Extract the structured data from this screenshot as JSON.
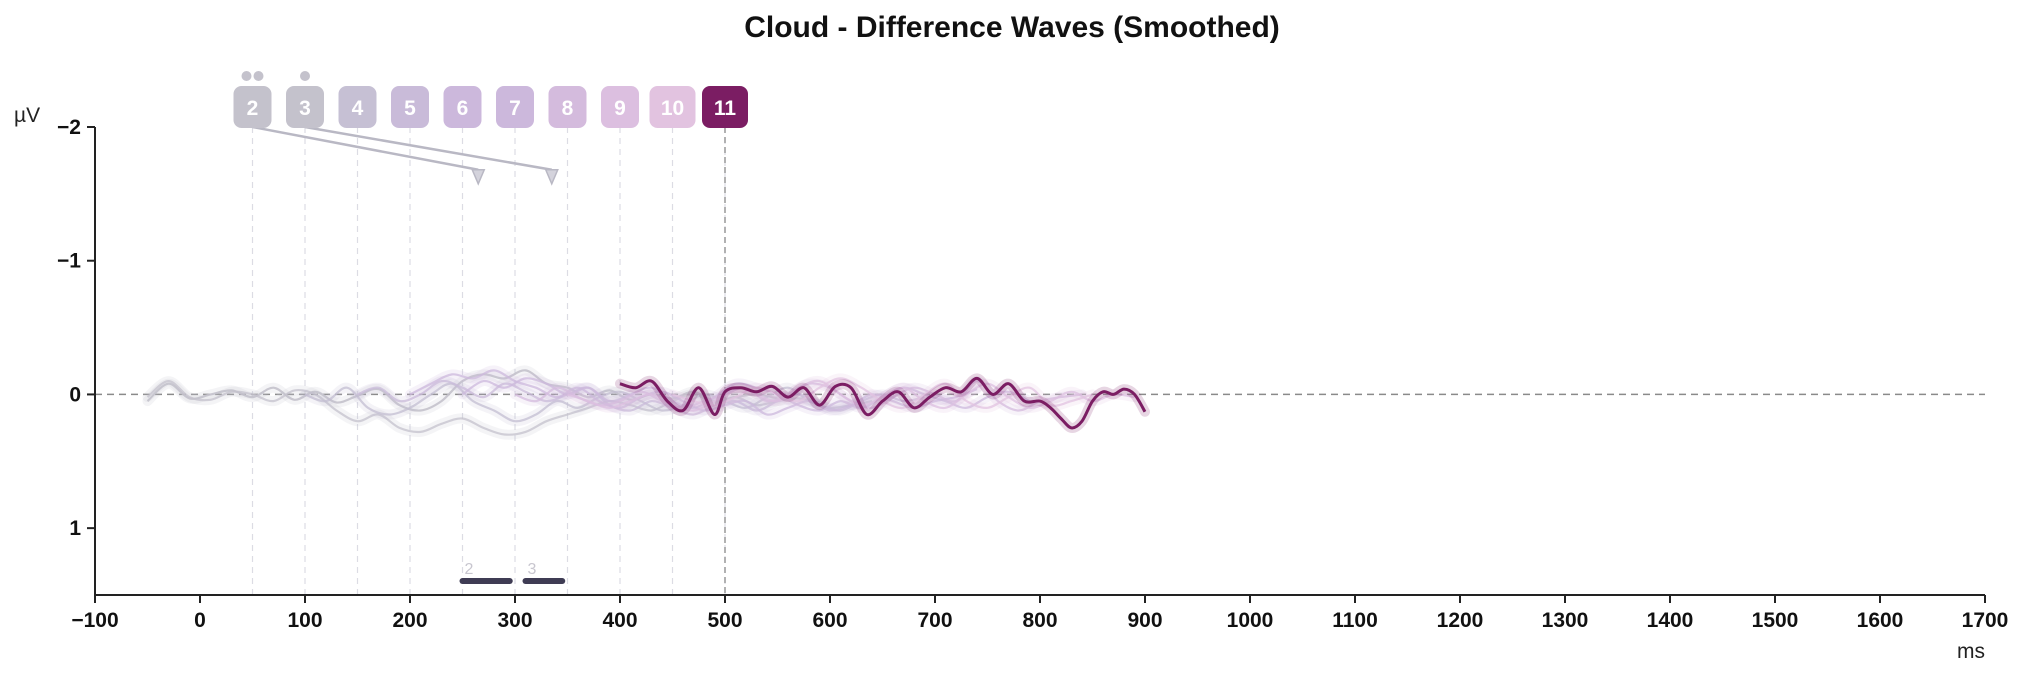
{
  "chart_data": {
    "type": "line",
    "title": "Cloud - Difference Waves (Smoothed)",
    "xlabel": "ms",
    "ylabel": "µV",
    "xlim": [
      -100,
      1700
    ],
    "ylim": [
      -2,
      1.5
    ],
    "y_inverted": true,
    "x_ticks": [
      -100,
      0,
      100,
      200,
      300,
      400,
      500,
      600,
      700,
      800,
      900,
      1000,
      1100,
      1200,
      1300,
      1400,
      1500,
      1600,
      1700
    ],
    "x_tick_labels": [
      "−100",
      "0",
      "100",
      "200",
      "300",
      "400",
      "500",
      "600",
      "700",
      "800",
      "900",
      "1000",
      "1100",
      "1200",
      "1300",
      "1400",
      "1500",
      "1600",
      "1700"
    ],
    "y_ticks": [
      -2,
      -1,
      0,
      1
    ],
    "y_tick_labels": [
      "−2",
      "−1",
      "0",
      "1"
    ],
    "zero_line": true,
    "highlight_onset_ms": 500,
    "stimulus_onsets_ms": [
      50,
      100,
      150,
      200,
      250,
      300,
      350,
      400,
      450,
      500
    ],
    "stimulus_badges": [
      {
        "label": "2",
        "onset": 50,
        "color": "#c4c2cc",
        "dots": 2
      },
      {
        "label": "3",
        "onset": 100,
        "color": "#c4c2cc",
        "dots": 1
      },
      {
        "label": "4",
        "onset": 150,
        "color": "#c6c0d4",
        "dots": 0
      },
      {
        "label": "5",
        "onset": 200,
        "color": "#c9bbd9",
        "dots": 0
      },
      {
        "label": "6",
        "onset": 250,
        "color": "#ccb8dc",
        "dots": 0
      },
      {
        "label": "7",
        "onset": 300,
        "color": "#ccb8dc",
        "dots": 0
      },
      {
        "label": "8",
        "onset": 350,
        "color": "#d4bbdd",
        "dots": 0
      },
      {
        "label": "9",
        "onset": 400,
        "color": "#dcbfe0",
        "dots": 0
      },
      {
        "label": "10",
        "onset": 450,
        "color": "#e2c3e0",
        "dots": 0
      },
      {
        "label": "11",
        "onset": 500,
        "color": "#7b1d63",
        "dots": 0
      }
    ],
    "arrows": [
      {
        "from_ms": 50,
        "to_ms": 265,
        "to_uv": -1.68
      },
      {
        "from_ms": 100,
        "to_ms": 335,
        "to_uv": -1.68
      }
    ],
    "significance_bars": [
      {
        "label": "2",
        "start_ms": 250,
        "end_ms": 295
      },
      {
        "label": "3",
        "start_ms": 310,
        "end_ms": 345
      }
    ],
    "series": [
      {
        "color": "#c4c2cc",
        "opacity": 0.9,
        "x": [
          -50,
          -30,
          -10,
          10,
          30,
          50,
          70,
          90,
          110,
          130,
          150,
          170,
          190,
          210,
          230,
          250,
          270,
          290,
          310,
          330,
          350,
          370,
          390,
          410,
          430,
          450,
          470,
          490,
          510,
          530,
          550
        ],
        "y": [
          0.05,
          -0.08,
          0.03,
          0.0,
          -0.03,
          0.02,
          -0.05,
          0.04,
          -0.02,
          0.06,
          0.01,
          -0.04,
          0.08,
          0.12,
          0.05,
          -0.1,
          -0.15,
          -0.12,
          -0.18,
          -0.08,
          -0.05,
          0.02,
          -0.03,
          0.04,
          0.0,
          0.03,
          -0.02,
          0.05,
          0.02,
          0.0,
          0.03
        ]
      },
      {
        "color": "#c4c2cc",
        "opacity": 0.75,
        "x": [
          -50,
          -30,
          -10,
          10,
          30,
          50,
          70,
          90,
          110,
          130,
          150,
          170,
          190,
          210,
          230,
          250,
          270,
          290,
          310,
          330,
          350,
          370,
          390,
          410,
          430,
          450,
          470,
          490,
          510,
          530,
          550,
          570,
          590
        ],
        "y": [
          0.02,
          -0.1,
          0.02,
          0.04,
          -0.02,
          0.0,
          0.05,
          -0.03,
          0.0,
          0.12,
          0.2,
          0.15,
          0.25,
          0.28,
          0.22,
          0.18,
          0.25,
          0.3,
          0.28,
          0.2,
          0.15,
          0.1,
          0.05,
          0.08,
          0.12,
          0.05,
          0.0,
          0.06,
          0.02,
          0.08,
          0.05,
          0.03,
          0.06
        ]
      },
      {
        "color": "#c3bed2",
        "opacity": 0.75,
        "x": [
          100,
          120,
          140,
          160,
          180,
          200,
          220,
          240,
          260,
          280,
          300,
          320,
          340,
          360,
          380,
          400,
          420,
          440,
          460,
          480,
          500,
          520,
          540,
          560,
          580,
          600,
          620,
          640
        ],
        "y": [
          0.0,
          0.05,
          -0.05,
          0.1,
          0.15,
          0.1,
          0.0,
          -0.08,
          0.05,
          0.12,
          0.2,
          0.15,
          0.05,
          0.1,
          0.02,
          -0.02,
          0.05,
          0.12,
          0.08,
          0.0,
          0.05,
          0.1,
          0.02,
          -0.05,
          0.05,
          0.1,
          0.08,
          0.05
        ]
      },
      {
        "color": "#c9bbd9",
        "opacity": 0.75,
        "x": [
          150,
          170,
          190,
          210,
          230,
          250,
          270,
          290,
          310,
          330,
          350,
          370,
          390,
          410,
          430,
          450,
          470,
          490,
          510,
          530,
          550,
          570,
          590,
          610,
          630,
          650,
          670,
          690
        ],
        "y": [
          0.0,
          -0.05,
          0.05,
          0.0,
          -0.1,
          -0.05,
          0.02,
          -0.08,
          -0.02,
          0.05,
          0.0,
          -0.05,
          0.08,
          0.12,
          0.05,
          0.1,
          0.15,
          0.08,
          0.05,
          0.12,
          0.05,
          0.0,
          0.08,
          0.12,
          0.05,
          0.0,
          0.05,
          0.02
        ]
      },
      {
        "color": "#ccb8dc",
        "opacity": 0.75,
        "x": [
          200,
          220,
          240,
          260,
          280,
          300,
          320,
          340,
          360,
          380,
          400,
          420,
          440,
          460,
          480,
          500,
          520,
          540,
          560,
          580,
          600,
          620,
          640,
          660,
          680,
          700,
          720,
          740
        ],
        "y": [
          0.0,
          -0.08,
          -0.15,
          -0.12,
          -0.18,
          -0.1,
          -0.05,
          0.02,
          -0.05,
          0.05,
          0.1,
          0.02,
          -0.02,
          0.05,
          0.12,
          0.08,
          0.05,
          0.15,
          0.1,
          0.05,
          0.12,
          0.08,
          0.0,
          0.05,
          0.1,
          0.05,
          0.02,
          -0.04
        ]
      },
      {
        "color": "#ccb8dc",
        "opacity": 0.75,
        "x": [
          250,
          270,
          290,
          310,
          330,
          350,
          370,
          390,
          410,
          430,
          450,
          470,
          490,
          510,
          530,
          550,
          570,
          590,
          610,
          630,
          650,
          670,
          690,
          710,
          730,
          750,
          770,
          790
        ],
        "y": [
          0.0,
          -0.1,
          -0.05,
          -0.12,
          -0.08,
          0.0,
          -0.05,
          0.05,
          0.0,
          -0.05,
          0.05,
          0.1,
          0.02,
          -0.08,
          -0.05,
          0.0,
          0.08,
          0.12,
          0.05,
          0.1,
          0.02,
          -0.05,
          0.0,
          0.05,
          0.1,
          0.02,
          -0.02,
          0.05
        ]
      },
      {
        "color": "#d4bbdd",
        "opacity": 0.75,
        "x": [
          300,
          320,
          340,
          360,
          380,
          400,
          420,
          440,
          460,
          480,
          500,
          520,
          540,
          560,
          580,
          600,
          620,
          640,
          660,
          680,
          700,
          720,
          740,
          760,
          780,
          800,
          820,
          840
        ],
        "y": [
          0.0,
          0.05,
          -0.05,
          0.02,
          0.08,
          0.05,
          -0.02,
          0.05,
          0.1,
          0.05,
          0.0,
          -0.05,
          0.05,
          0.0,
          -0.08,
          -0.05,
          0.05,
          0.1,
          0.02,
          -0.05,
          0.0,
          0.05,
          -0.1,
          0.05,
          0.12,
          0.05,
          0.02,
          0.0
        ]
      },
      {
        "color": "#dcbfe0",
        "opacity": 0.75,
        "x": [
          350,
          370,
          390,
          410,
          430,
          450,
          470,
          490,
          510,
          530,
          550,
          570,
          590,
          610,
          630,
          650,
          670,
          690,
          710,
          730,
          750,
          770,
          790,
          810,
          830,
          850,
          870,
          890
        ],
        "y": [
          0.0,
          0.05,
          0.1,
          0.05,
          0.0,
          0.08,
          0.12,
          0.05,
          -0.05,
          0.0,
          0.05,
          -0.05,
          -0.1,
          0.0,
          0.08,
          0.02,
          -0.05,
          0.05,
          0.1,
          0.0,
          -0.08,
          0.02,
          0.1,
          0.05,
          -0.02,
          0.05,
          0.0,
          0.02
        ]
      },
      {
        "color": "#e2c3e0",
        "opacity": 0.75,
        "x": [
          450,
          470,
          490,
          510,
          530,
          550,
          570,
          590,
          610,
          630,
          650,
          670,
          690,
          710,
          730,
          750,
          770,
          790,
          810,
          830,
          850
        ],
        "y": [
          0.0,
          0.05,
          0.08,
          0.02,
          -0.05,
          0.0,
          0.05,
          -0.05,
          -0.12,
          -0.05,
          0.05,
          0.1,
          0.0,
          -0.08,
          0.05,
          0.1,
          0.02,
          -0.05,
          0.08,
          0.05,
          0.0
        ]
      },
      {
        "color": "#7b1d63",
        "opacity": 1.0,
        "width": 3,
        "x": [
          400,
          415,
          430,
          445,
          460,
          475,
          490,
          500,
          515,
          530,
          545,
          560,
          575,
          590,
          605,
          620,
          635,
          650,
          665,
          680,
          695,
          710,
          725,
          740,
          755,
          770,
          785,
          800,
          810,
          820,
          830,
          840,
          850,
          860,
          870,
          880,
          890,
          900
        ],
        "y": [
          -0.08,
          -0.05,
          -0.1,
          0.05,
          0.12,
          -0.05,
          0.15,
          -0.02,
          -0.05,
          -0.02,
          -0.06,
          0.02,
          -0.05,
          0.08,
          -0.06,
          -0.05,
          0.15,
          0.05,
          -0.02,
          0.1,
          0.02,
          -0.05,
          -0.02,
          -0.12,
          0.0,
          -0.08,
          0.05,
          0.05,
          0.1,
          0.18,
          0.25,
          0.2,
          0.05,
          -0.02,
          0.0,
          -0.04,
          0.0,
          0.13
        ]
      }
    ]
  }
}
